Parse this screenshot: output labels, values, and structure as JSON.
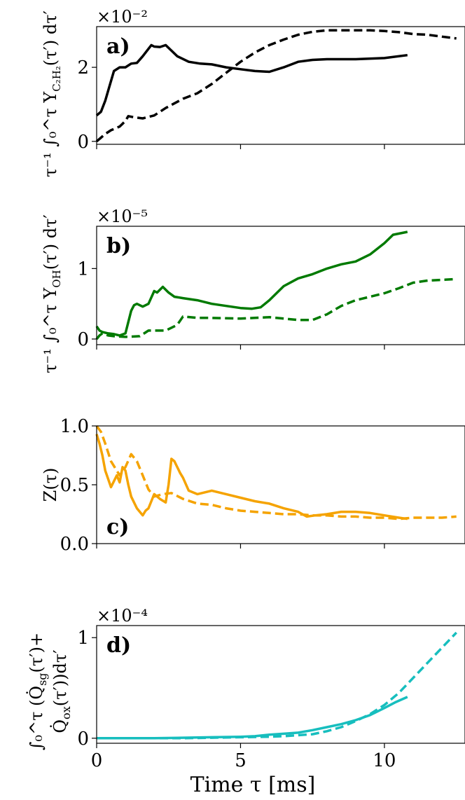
{
  "chart_data": [
    {
      "type": "line",
      "panel_label": "a)",
      "ylabel": "1/τ ∫₀^τ Y_{C₂H₂}(τ′) dτ′",
      "ylabel_display": "τ⁻¹ ∫₀^τ Y",
      "ylabel_sub": "C₂H₂",
      "ylabel_tail": "(τ′) dτ′",
      "scale": "×10⁻²",
      "xlim": [
        0,
        12.8
      ],
      "ylim": [
        -0.08,
        3.1
      ],
      "yticks": [
        0,
        2
      ],
      "ytick_labels": [
        "0",
        "2"
      ],
      "color": "#000000",
      "series": [
        {
          "style": "solid",
          "x": [
            0,
            0.15,
            0.3,
            0.45,
            0.6,
            0.8,
            1.0,
            1.2,
            1.4,
            1.6,
            1.8,
            1.9,
            2.0,
            2.2,
            2.4,
            2.6,
            2.8,
            3.2,
            3.6,
            4.0,
            4.5,
            5.0,
            5.5,
            6.0,
            6.5,
            7.0,
            7.5,
            8.0,
            9.0,
            10.0,
            10.8
          ],
          "y": [
            0.7,
            0.8,
            1.1,
            1.5,
            1.9,
            2.0,
            2.0,
            2.1,
            2.12,
            2.3,
            2.5,
            2.6,
            2.56,
            2.55,
            2.6,
            2.45,
            2.3,
            2.15,
            2.1,
            2.08,
            2.0,
            1.95,
            1.9,
            1.88,
            2.0,
            2.15,
            2.2,
            2.22,
            2.22,
            2.25,
            2.33
          ]
        },
        {
          "style": "dashed",
          "x": [
            0,
            0.15,
            0.3,
            0.5,
            0.8,
            1.0,
            1.1,
            1.3,
            1.6,
            2.0,
            2.4,
            3.0,
            3.5,
            4.0,
            4.5,
            5.0,
            5.5,
            6.0,
            6.5,
            7.0,
            7.5,
            8.0,
            8.5,
            9.0,
            9.5,
            10.0,
            10.5,
            11.0,
            11.5,
            12.0,
            12.5
          ],
          "y": [
            0.0,
            0.1,
            0.2,
            0.3,
            0.4,
            0.55,
            0.68,
            0.65,
            0.62,
            0.7,
            0.9,
            1.15,
            1.3,
            1.55,
            1.85,
            2.15,
            2.4,
            2.6,
            2.75,
            2.88,
            2.96,
            3.0,
            3.0,
            3.0,
            3.0,
            2.98,
            2.95,
            2.9,
            2.88,
            2.83,
            2.78
          ]
        }
      ]
    },
    {
      "type": "line",
      "panel_label": "b)",
      "ylabel": "1/τ ∫₀^τ Y_{OH}(τ′) dτ′",
      "ylabel_display": "τ⁻¹ ∫₀^τ Y",
      "ylabel_sub": "OH",
      "ylabel_tail": "(τ′) dτ′",
      "scale": "×10⁻⁵",
      "xlim": [
        0,
        12.8
      ],
      "ylim": [
        -0.08,
        1.6
      ],
      "yticks": [
        0,
        1
      ],
      "ytick_labels": [
        "0",
        "1"
      ],
      "color": "#007a00",
      "series": [
        {
          "style": "solid",
          "x": [
            0,
            0.1,
            0.2,
            0.4,
            0.6,
            0.8,
            1.0,
            1.2,
            1.3,
            1.4,
            1.6,
            1.8,
            2.0,
            2.1,
            2.3,
            2.5,
            2.7,
            3.0,
            3.5,
            4.0,
            4.5,
            5.0,
            5.4,
            5.7,
            6.0,
            6.5,
            7.0,
            7.5,
            8.0,
            8.5,
            9.0,
            9.5,
            10.0,
            10.3,
            10.8
          ],
          "y": [
            0.18,
            0.12,
            0.1,
            0.08,
            0.07,
            0.05,
            0.08,
            0.4,
            0.48,
            0.5,
            0.46,
            0.5,
            0.68,
            0.66,
            0.74,
            0.66,
            0.6,
            0.58,
            0.55,
            0.5,
            0.47,
            0.44,
            0.43,
            0.45,
            0.55,
            0.75,
            0.86,
            0.92,
            1.0,
            1.06,
            1.1,
            1.2,
            1.36,
            1.48,
            1.52
          ]
        },
        {
          "style": "dashed",
          "x": [
            0,
            0.1,
            0.2,
            0.4,
            0.6,
            1.0,
            1.5,
            1.8,
            2.0,
            2.4,
            2.8,
            3.0,
            3.5,
            4.0,
            5.0,
            5.5,
            6.0,
            6.5,
            7.0,
            7.5,
            8.0,
            8.5,
            9.0,
            9.5,
            10.0,
            10.5,
            11.0,
            11.5,
            12.0,
            12.5
          ],
          "y": [
            0.0,
            0.05,
            0.08,
            0.05,
            0.04,
            0.03,
            0.04,
            0.12,
            0.12,
            0.12,
            0.2,
            0.32,
            0.3,
            0.3,
            0.29,
            0.3,
            0.31,
            0.29,
            0.27,
            0.27,
            0.35,
            0.47,
            0.55,
            0.6,
            0.65,
            0.72,
            0.8,
            0.83,
            0.84,
            0.85
          ]
        }
      ]
    },
    {
      "type": "line",
      "panel_label": "c)",
      "ylabel": "Z(τ)",
      "xlim": [
        0,
        12.8
      ],
      "ylim": [
        0.0,
        1.0
      ],
      "yticks": [
        0.0,
        0.5,
        1.0
      ],
      "ytick_labels": [
        "0.0",
        "0.5",
        "1.0"
      ],
      "color": "#f5a300",
      "series": [
        {
          "style": "solid",
          "x": [
            0,
            0.1,
            0.2,
            0.3,
            0.5,
            0.7,
            0.8,
            0.9,
            1.0,
            1.1,
            1.2,
            1.4,
            1.6,
            1.7,
            1.8,
            2.0,
            2.2,
            2.4,
            2.5,
            2.6,
            2.7,
            2.9,
            3.0,
            3.2,
            3.5,
            4.0,
            4.5,
            5.0,
            5.5,
            6.0,
            6.5,
            7.0,
            7.3,
            7.6,
            8.0,
            8.5,
            9.0,
            9.5,
            10.0,
            10.5,
            10.8
          ],
          "y": [
            0.93,
            0.85,
            0.75,
            0.62,
            0.48,
            0.58,
            0.52,
            0.65,
            0.62,
            0.5,
            0.4,
            0.3,
            0.24,
            0.28,
            0.3,
            0.42,
            0.38,
            0.35,
            0.5,
            0.72,
            0.7,
            0.6,
            0.56,
            0.45,
            0.42,
            0.45,
            0.42,
            0.39,
            0.36,
            0.34,
            0.3,
            0.27,
            0.23,
            0.24,
            0.25,
            0.27,
            0.27,
            0.26,
            0.24,
            0.22,
            0.21
          ]
        },
        {
          "style": "dashed",
          "x": [
            0,
            0.15,
            0.3,
            0.5,
            0.8,
            1.0,
            1.2,
            1.4,
            1.6,
            1.8,
            2.0,
            2.3,
            2.6,
            3.0,
            3.5,
            4.0,
            4.5,
            5.0,
            5.5,
            6.0,
            6.5,
            7.0,
            7.5,
            8.0,
            8.5,
            9.0,
            9.5,
            10.0,
            10.5,
            11.0,
            11.5,
            12.0,
            12.5
          ],
          "y": [
            1.0,
            0.95,
            0.85,
            0.7,
            0.58,
            0.65,
            0.76,
            0.7,
            0.58,
            0.46,
            0.4,
            0.42,
            0.43,
            0.38,
            0.34,
            0.33,
            0.3,
            0.28,
            0.27,
            0.26,
            0.25,
            0.25,
            0.24,
            0.24,
            0.23,
            0.23,
            0.22,
            0.22,
            0.21,
            0.22,
            0.22,
            0.22,
            0.23
          ]
        }
      ]
    },
    {
      "type": "line",
      "panel_label": "d)",
      "ylabel": "∫₀^τ (Q̇_{sg}(τ′)+ Q̇_{ox}(τ′))dτ′",
      "ylabel_line1": "∫₀^τ (Q̇",
      "ylabel_line1_sub": "sg",
      "ylabel_line1_tail": "(τ′)+",
      "ylabel_line2": "Q̇",
      "ylabel_line2_sub": "ox",
      "ylabel_line2_tail": "(τ′))dτ′",
      "scale": "×10⁻⁴",
      "xlabel": "Time τ [ms]",
      "xlim": [
        0,
        12.8
      ],
      "ylim": [
        -0.05,
        1.12
      ],
      "xticks": [
        0,
        5,
        10
      ],
      "xtick_labels": [
        "0",
        "5",
        "10"
      ],
      "yticks": [
        0,
        1
      ],
      "ytick_labels": [
        "0",
        "1"
      ],
      "color": "#17bebe",
      "series": [
        {
          "style": "solid",
          "x": [
            0,
            1,
            2,
            3,
            4,
            5,
            5.5,
            6,
            6.5,
            7,
            7.5,
            8,
            8.5,
            9,
            9.5,
            10,
            10.4,
            10.8
          ],
          "y": [
            0.0,
            0.0,
            0.0,
            0.005,
            0.01,
            0.015,
            0.02,
            0.035,
            0.045,
            0.055,
            0.08,
            0.11,
            0.14,
            0.18,
            0.23,
            0.3,
            0.36,
            0.41
          ]
        },
        {
          "style": "dashed",
          "x": [
            0,
            1,
            2,
            3,
            4,
            5,
            6,
            6.5,
            7,
            7.5,
            8,
            8.5,
            9,
            9.5,
            10,
            10.5,
            11,
            11.5,
            12,
            12.5
          ],
          "y": [
            0.0,
            0.0,
            0.0,
            0.0,
            0.005,
            0.01,
            0.015,
            0.02,
            0.03,
            0.04,
            0.07,
            0.11,
            0.17,
            0.24,
            0.33,
            0.45,
            0.6,
            0.75,
            0.9,
            1.05
          ]
        }
      ]
    }
  ]
}
